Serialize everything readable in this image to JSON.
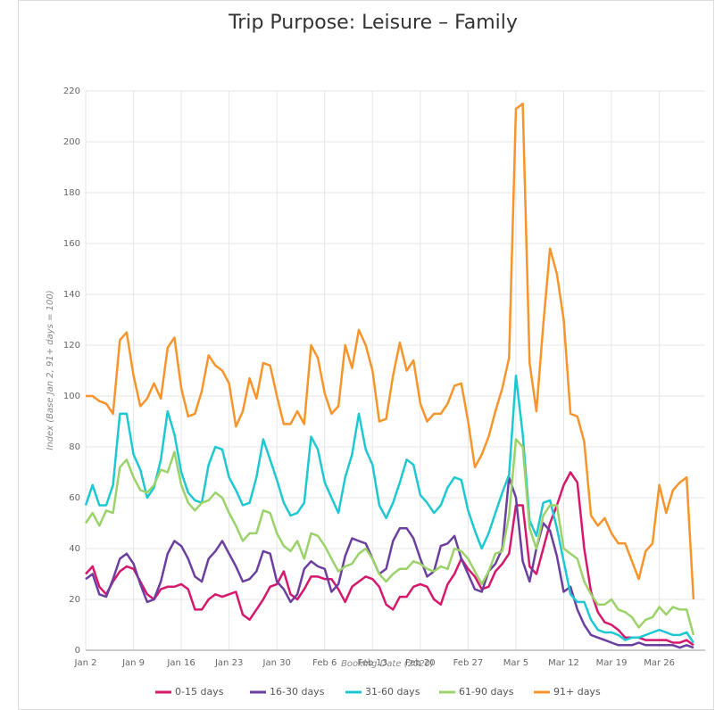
{
  "chart_data": {
    "type": "line",
    "title": "Trip Purpose: Leisure – Family",
    "xlabel": "Booking Date (2020)",
    "ylabel": "Index (Base Jan 2, 91+ days = 100)",
    "categories": [
      "Jan 2",
      null,
      null,
      null,
      null,
      null,
      null,
      "Jan 9",
      null,
      null,
      null,
      null,
      null,
      null,
      "Jan 16",
      null,
      null,
      null,
      null,
      null,
      null,
      "Jan 23",
      null,
      null,
      null,
      null,
      null,
      null,
      "Jan 30",
      null,
      null,
      null,
      null,
      null,
      null,
      "Feb 6",
      null,
      null,
      null,
      null,
      null,
      null,
      "Feb 13",
      null,
      null,
      null,
      null,
      null,
      null,
      "Feb 20",
      null,
      null,
      null,
      null,
      null,
      null,
      "Feb 27",
      null,
      null,
      null,
      null,
      null,
      null,
      "Mar 5",
      null,
      null,
      null,
      null,
      null,
      null,
      "Mar 12",
      null,
      null,
      null,
      null,
      null,
      null,
      "Mar 19",
      null,
      null,
      null,
      null,
      null,
      null,
      "Mar 26",
      null,
      null,
      null,
      null,
      null
    ],
    "ylim": [
      0,
      220
    ],
    "yticks": [
      0,
      20,
      40,
      60,
      80,
      100,
      120,
      140,
      160,
      180,
      200,
      220
    ],
    "grid": true,
    "series": [
      {
        "name": "0-15 days",
        "color": "#d6186c",
        "values": [
          30,
          33,
          25,
          22,
          27,
          31,
          33,
          32,
          27,
          22,
          20,
          24,
          25,
          25,
          26,
          24,
          16,
          16,
          20,
          22,
          21,
          22,
          23,
          14,
          12,
          16,
          20,
          25,
          26,
          31,
          22,
          20,
          24,
          29,
          29,
          28,
          28,
          24,
          19,
          25,
          27,
          29,
          28,
          25,
          18,
          16,
          21,
          21,
          25,
          26,
          25,
          20,
          18,
          26,
          30,
          36,
          32,
          29,
          24,
          25,
          31,
          34,
          38,
          57,
          57,
          33,
          30,
          40,
          50,
          57,
          65,
          70,
          66,
          40,
          23,
          15,
          11,
          10,
          8,
          5,
          5,
          5,
          4,
          4,
          4,
          4,
          3,
          3,
          4,
          2
        ]
      },
      {
        "name": "16-30 days",
        "color": "#6b3fa0",
        "values": [
          28,
          30,
          22,
          21,
          28,
          36,
          38,
          34,
          26,
          19,
          20,
          27,
          38,
          43,
          41,
          36,
          29,
          27,
          36,
          39,
          43,
          38,
          33,
          27,
          28,
          31,
          39,
          38,
          27,
          24,
          19,
          22,
          32,
          35,
          33,
          32,
          23,
          26,
          37,
          44,
          43,
          42,
          36,
          30,
          32,
          43,
          48,
          48,
          44,
          36,
          29,
          31,
          41,
          42,
          45,
          36,
          30,
          24,
          23,
          31,
          34,
          40,
          68,
          60,
          35,
          27,
          40,
          50,
          47,
          37,
          23,
          25,
          16,
          10,
          6,
          5,
          4,
          3,
          2,
          2,
          2,
          3,
          2,
          2,
          2,
          2,
          2,
          1,
          2,
          1
        ]
      },
      {
        "name": "31-60 days",
        "color": "#1ec8d2",
        "values": [
          57,
          65,
          57,
          57,
          65,
          93,
          93,
          77,
          71,
          60,
          64,
          75,
          94,
          85,
          70,
          62,
          59,
          58,
          73,
          80,
          79,
          68,
          63,
          57,
          58,
          68,
          83,
          75,
          67,
          58,
          53,
          54,
          58,
          84,
          79,
          66,
          60,
          54,
          68,
          77,
          93,
          79,
          73,
          57,
          52,
          58,
          66,
          75,
          73,
          61,
          58,
          54,
          57,
          64,
          68,
          67,
          55,
          47,
          40,
          46,
          54,
          62,
          69,
          108,
          85,
          51,
          45,
          58,
          59,
          48,
          35,
          22,
          19,
          19,
          12,
          8,
          7,
          7,
          6,
          4,
          5,
          5,
          6,
          7,
          8,
          7,
          6,
          6,
          7,
          3
        ]
      },
      {
        "name": "61-90 days",
        "color": "#9bd36a",
        "values": [
          50,
          54,
          49,
          55,
          54,
          72,
          75,
          68,
          63,
          62,
          65,
          71,
          70,
          78,
          65,
          58,
          55,
          58,
          59,
          62,
          60,
          54,
          49,
          43,
          46,
          46,
          55,
          54,
          46,
          41,
          39,
          43,
          36,
          46,
          45,
          41,
          36,
          31,
          33,
          34,
          38,
          40,
          36,
          30,
          27,
          30,
          32,
          32,
          35,
          34,
          32,
          31,
          33,
          32,
          40,
          39,
          36,
          31,
          26,
          31,
          38,
          39,
          53,
          83,
          80,
          48,
          40,
          53,
          57,
          57,
          40,
          38,
          36,
          27,
          22,
          18,
          18,
          20,
          16,
          15,
          13,
          9,
          12,
          13,
          17,
          14,
          17,
          16,
          16,
          6
        ]
      },
      {
        "name": "91+ days",
        "color": "#f7942b",
        "values": [
          100,
          100,
          98,
          97,
          93,
          122,
          125,
          108,
          96,
          99,
          105,
          99,
          119,
          123,
          103,
          92,
          93,
          102,
          116,
          112,
          110,
          105,
          88,
          94,
          107,
          99,
          113,
          112,
          100,
          89,
          89,
          94,
          89,
          120,
          115,
          101,
          93,
          96,
          120,
          111,
          126,
          120,
          110,
          90,
          91,
          108,
          121,
          110,
          114,
          97,
          90,
          93,
          93,
          97,
          104,
          105,
          90,
          72,
          77,
          84,
          94,
          103,
          115,
          213,
          215,
          113,
          94,
          128,
          158,
          148,
          130,
          93,
          92,
          82,
          53,
          49,
          52,
          46,
          42,
          42,
          35,
          28,
          39,
          42,
          65,
          54,
          63,
          66,
          68,
          20
        ]
      }
    ]
  }
}
